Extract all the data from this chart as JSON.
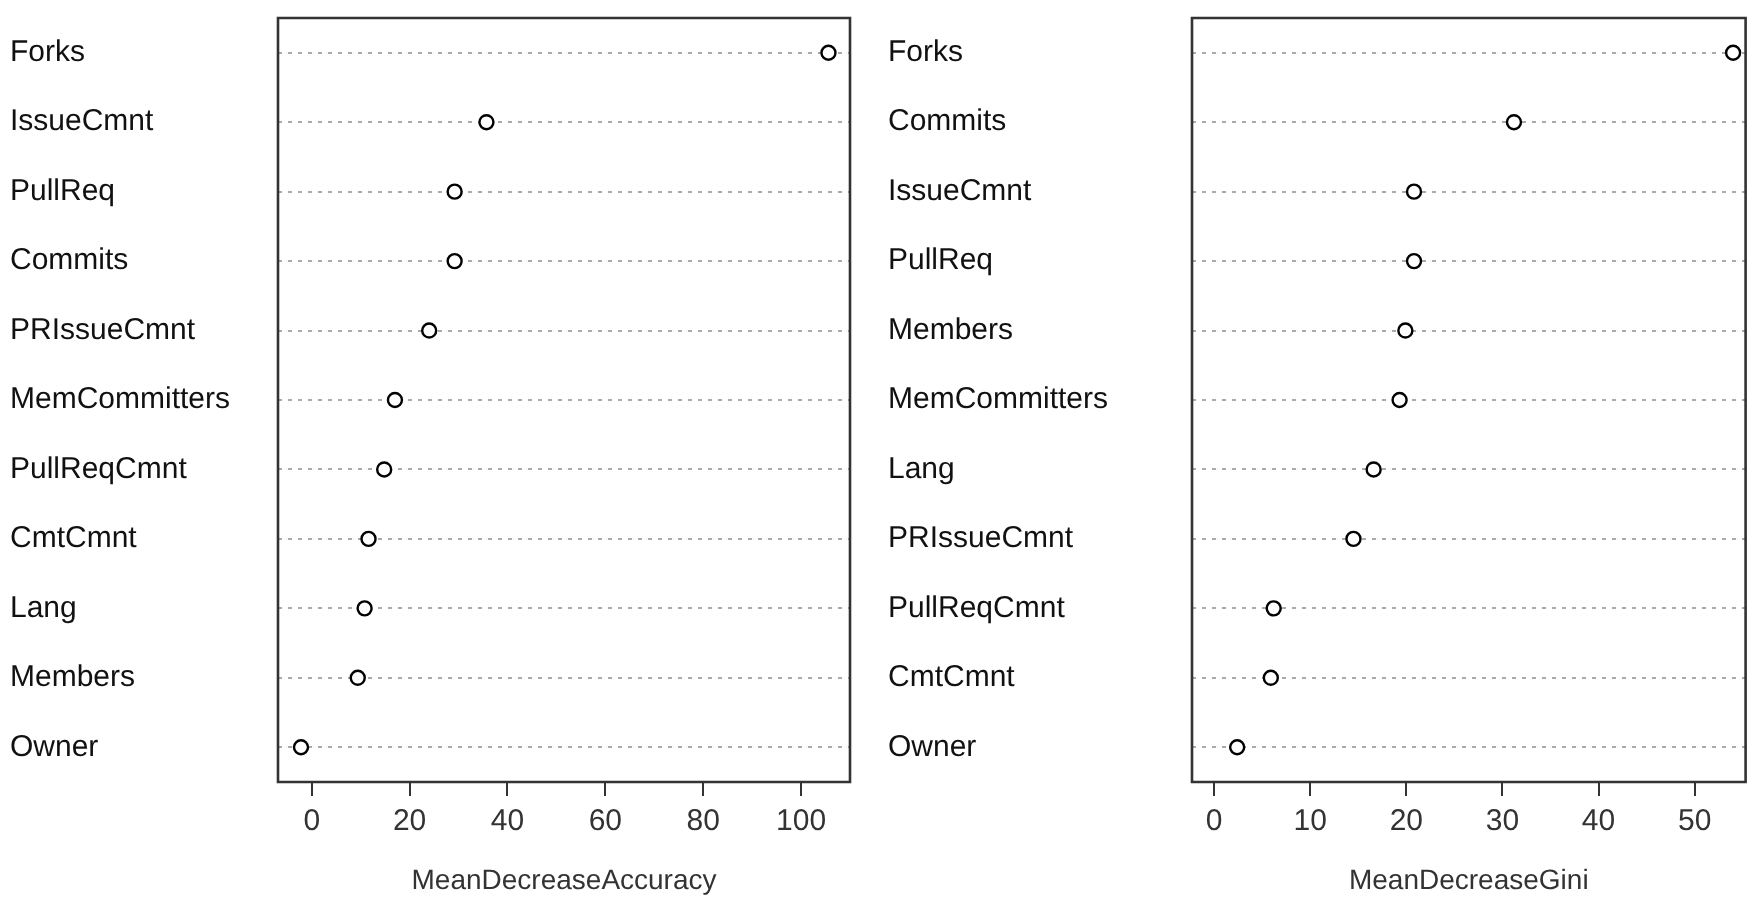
{
  "chart_data": [
    {
      "type": "scatter",
      "orientation": "horizontal",
      "xlabel": "MeanDecreaseAccuracy",
      "categories": [
        "Forks",
        "IssueCmnt",
        "PullReq",
        "Commits",
        "PRIssueCmnt",
        "MemCommitters",
        "PullReqCmnt",
        "CmtCmnt",
        "Lang",
        "Members",
        "Owner"
      ],
      "series": [
        {
          "color": "#000000",
          "values": [
            105.6,
            35.7,
            29.2,
            29.2,
            24.0,
            17.0,
            14.8,
            11.6,
            10.8,
            9.4,
            -2.2
          ]
        }
      ],
      "xlim": [
        -6.9,
        110
      ],
      "xticks": [
        0,
        20,
        40,
        60,
        80,
        100
      ],
      "grid": "y",
      "marker": "circle"
    },
    {
      "type": "scatter",
      "orientation": "horizontal",
      "xlabel": "MeanDecreaseGini",
      "categories": [
        "Forks",
        "Commits",
        "IssueCmnt",
        "PullReq",
        "Members",
        "MemCommitters",
        "Lang",
        "PRIssueCmnt",
        "PullReqCmnt",
        "CmtCmnt",
        "Owner"
      ],
      "series": [
        {
          "color": "#000000",
          "values": [
            54.0,
            31.2,
            20.8,
            20.8,
            19.9,
            19.3,
            16.6,
            14.5,
            6.2,
            5.9,
            2.4
          ]
        }
      ],
      "xlim": [
        -2.3,
        55.3
      ],
      "xticks": [
        0,
        10,
        20,
        30,
        40,
        50
      ],
      "grid": "y",
      "marker": "circle"
    }
  ]
}
